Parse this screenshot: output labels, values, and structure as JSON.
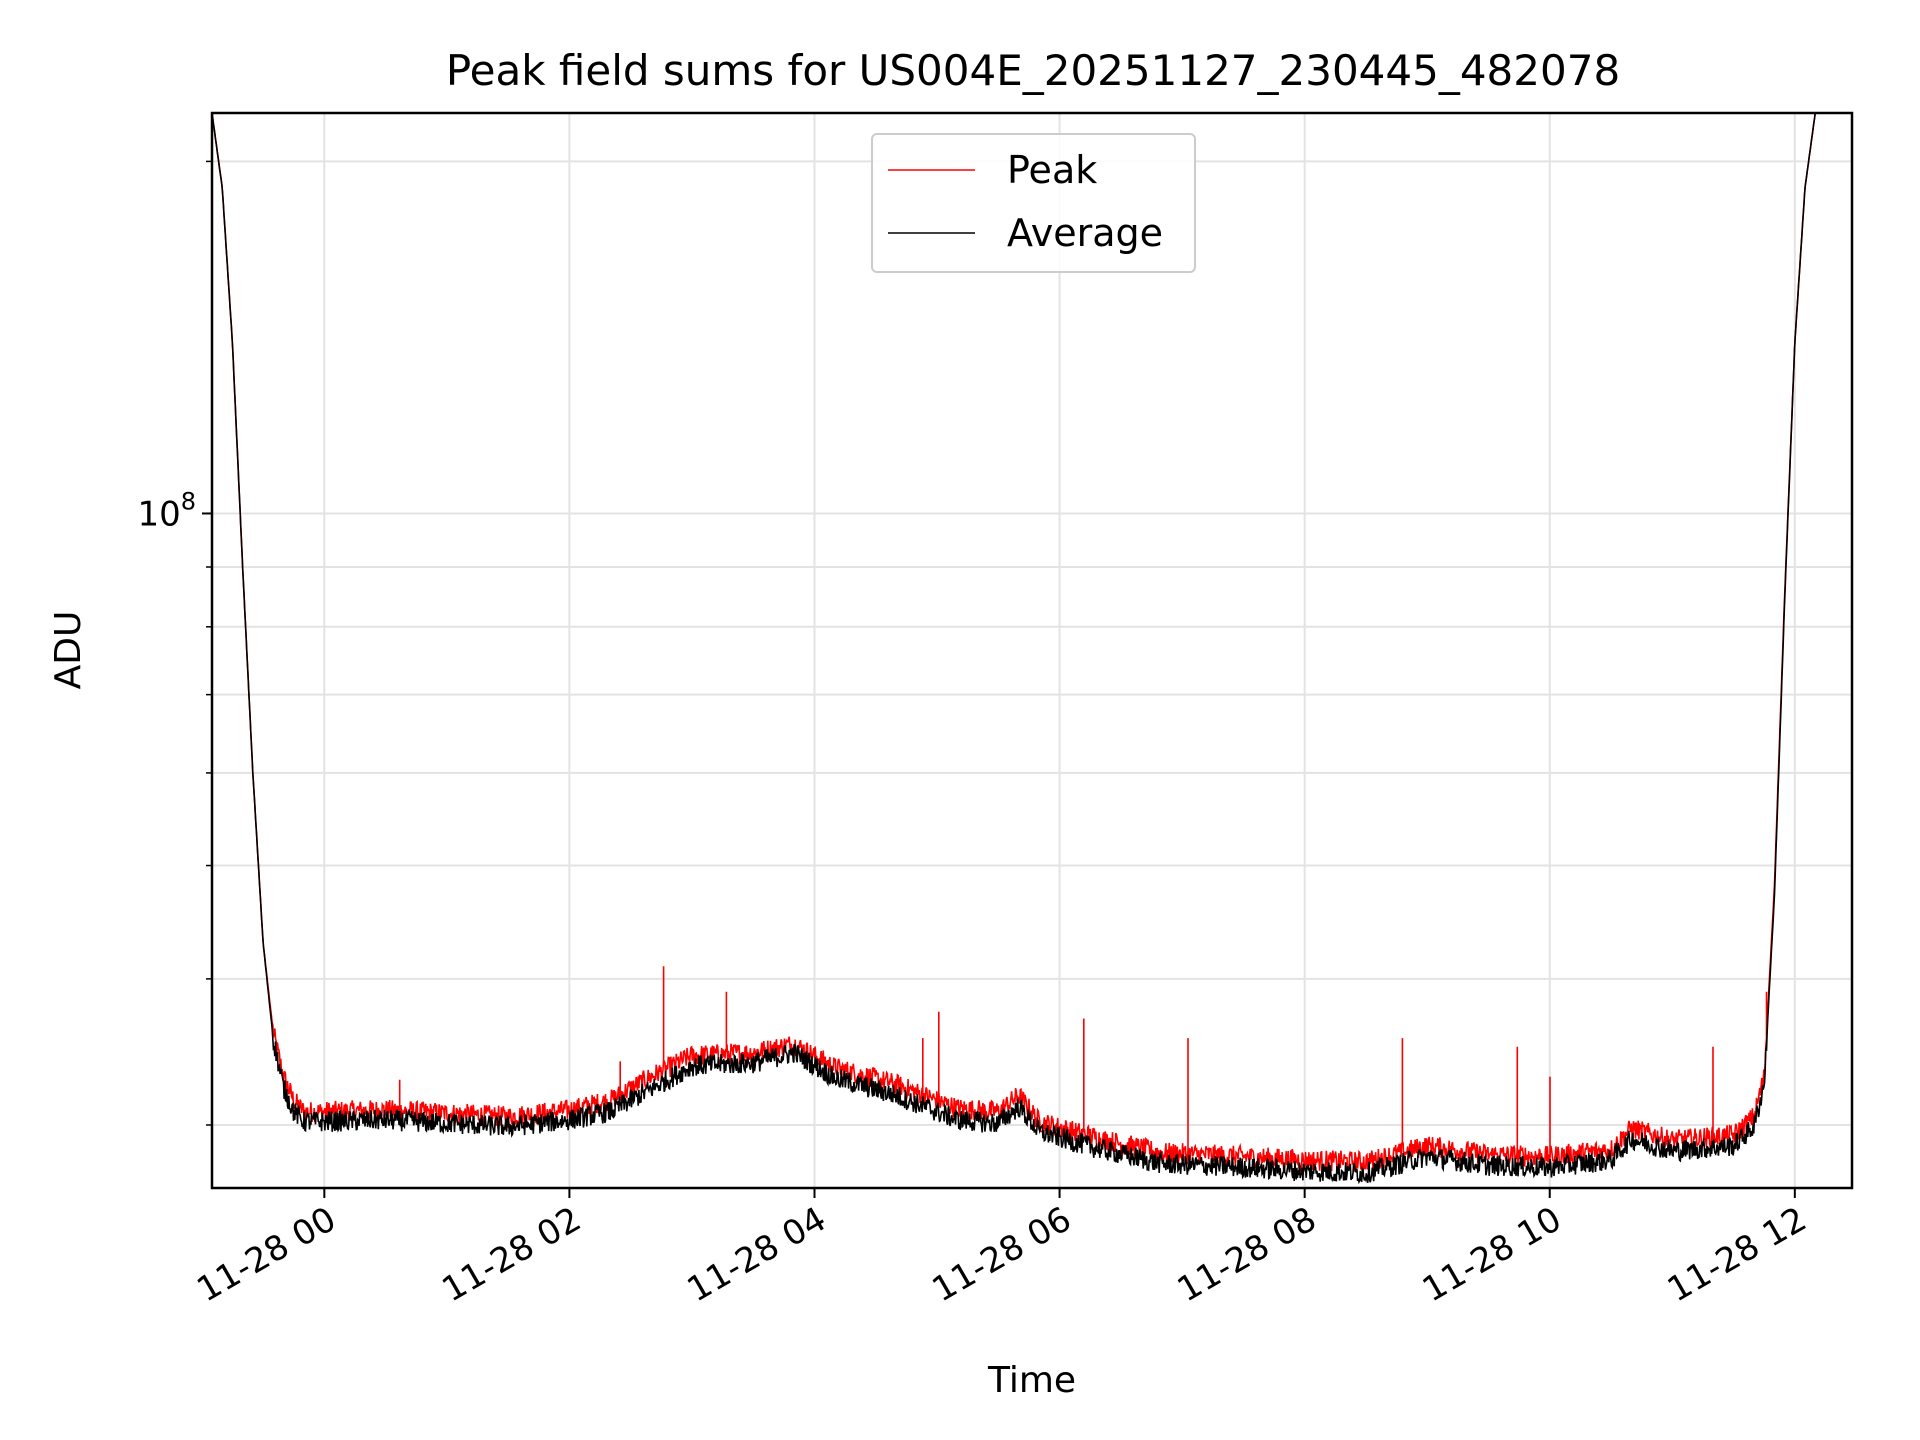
{
  "chart_data": {
    "type": "line",
    "title": "Peak field sums for US004E_20251127_230445_482078",
    "xlabel": "Time",
    "ylabel": "ADU",
    "yscale": "log",
    "xlim": [
      "2025-11-27 23:05",
      "2025-11-28 12:28"
    ],
    "ylim": [
      26500000,
      220000000
    ],
    "grid": true,
    "legend": "upper-center",
    "x_ticks": [
      "11-28 00",
      "11-28 02",
      "11-28 04",
      "11-28 06",
      "11-28 08",
      "11-28 10",
      "11-28 12"
    ],
    "y_ticks": [
      {
        "value": 100000000,
        "base": "10",
        "exp": "8"
      }
    ],
    "series": [
      {
        "name": "Peak",
        "color": "#ff0000",
        "points": [
          [
            "2025-11-27 23:05",
            220000000
          ],
          [
            "2025-11-27 23:10",
            190000000
          ],
          [
            "2025-11-27 23:15",
            140000000
          ],
          [
            "2025-11-27 23:20",
            90000000
          ],
          [
            "2025-11-27 23:25",
            60000000
          ],
          [
            "2025-11-27 23:30",
            43000000
          ],
          [
            "2025-11-27 23:35",
            36000000
          ],
          [
            "2025-11-27 23:40",
            33000000
          ],
          [
            "2025-11-27 23:45",
            31500000
          ],
          [
            "2025-11-27 23:50",
            30800000
          ],
          [
            "2025-11-28 00:00",
            30800000
          ],
          [
            "2025-11-28 00:30",
            30900000
          ],
          [
            "2025-11-28 01:00",
            30700000
          ],
          [
            "2025-11-28 01:30",
            30500000
          ],
          [
            "2025-11-28 02:00",
            30900000
          ],
          [
            "2025-11-28 02:20",
            31500000
          ],
          [
            "2025-11-28 02:40",
            33000000
          ],
          [
            "2025-11-28 03:00",
            34400000
          ],
          [
            "2025-11-28 03:30",
            34600000
          ],
          [
            "2025-11-28 03:50",
            35200000
          ],
          [
            "2025-11-28 04:10",
            33600000
          ],
          [
            "2025-11-28 04:40",
            32500000
          ],
          [
            "2025-11-28 05:10",
            31000000
          ],
          [
            "2025-11-28 05:30",
            30800000
          ],
          [
            "2025-11-28 05:40",
            31800000
          ],
          [
            "2025-11-28 05:50",
            30200000
          ],
          [
            "2025-11-28 06:20",
            29200000
          ],
          [
            "2025-11-28 06:50",
            28400000
          ],
          [
            "2025-11-28 07:30",
            28200000
          ],
          [
            "2025-11-28 08:00",
            28000000
          ],
          [
            "2025-11-28 08:30",
            27900000
          ],
          [
            "2025-11-28 09:00",
            28800000
          ],
          [
            "2025-11-28 09:30",
            28300000
          ],
          [
            "2025-11-28 10:00",
            28200000
          ],
          [
            "2025-11-28 10:30",
            28600000
          ],
          [
            "2025-11-28 10:40",
            29800000
          ],
          [
            "2025-11-28 11:00",
            29100000
          ],
          [
            "2025-11-28 11:30",
            29400000
          ],
          [
            "2025-11-28 11:40",
            30500000
          ],
          [
            "2025-11-28 11:45",
            33000000
          ],
          [
            "2025-11-28 11:50",
            48000000
          ],
          [
            "2025-11-28 11:55",
            85000000
          ],
          [
            "2025-11-28 12:00",
            140000000
          ],
          [
            "2025-11-28 12:05",
            190000000
          ],
          [
            "2025-11-28 12:10",
            220000000
          ]
        ],
        "spikes": [
          [
            "2025-11-28 00:37",
            32800000
          ],
          [
            "2025-11-28 02:25",
            34000000
          ],
          [
            "2025-11-28 02:46",
            41000000
          ],
          [
            "2025-11-28 03:17",
            39000000
          ],
          [
            "2025-11-28 04:53",
            35600000
          ],
          [
            "2025-11-28 05:01",
            37500000
          ],
          [
            "2025-11-28 06:12",
            37000000
          ],
          [
            "2025-11-28 07:03",
            35600000
          ],
          [
            "2025-11-28 08:48",
            35600000
          ],
          [
            "2025-11-28 09:44",
            35000000
          ],
          [
            "2025-11-28 10:00",
            33000000
          ],
          [
            "2025-11-28 11:20",
            35000000
          ],
          [
            "2025-11-28 11:46",
            39000000
          ]
        ]
      },
      {
        "name": "Average",
        "color": "#000000",
        "points": [
          [
            "2025-11-27 23:05",
            220000000
          ],
          [
            "2025-11-27 23:10",
            190000000
          ],
          [
            "2025-11-27 23:15",
            140000000
          ],
          [
            "2025-11-27 23:20",
            90000000
          ],
          [
            "2025-11-27 23:25",
            60000000
          ],
          [
            "2025-11-27 23:30",
            43000000
          ],
          [
            "2025-11-27 23:35",
            35500000
          ],
          [
            "2025-11-27 23:40",
            32300000
          ],
          [
            "2025-11-27 23:45",
            30800000
          ],
          [
            "2025-11-27 23:50",
            30200000
          ],
          [
            "2025-11-28 00:00",
            30200000
          ],
          [
            "2025-11-28 00:30",
            30300000
          ],
          [
            "2025-11-28 01:00",
            30100000
          ],
          [
            "2025-11-28 01:30",
            29900000
          ],
          [
            "2025-11-28 02:00",
            30300000
          ],
          [
            "2025-11-28 02:20",
            30800000
          ],
          [
            "2025-11-28 02:40",
            32200000
          ],
          [
            "2025-11-28 03:00",
            33700000
          ],
          [
            "2025-11-28 03:30",
            33900000
          ],
          [
            "2025-11-28 03:50",
            34600000
          ],
          [
            "2025-11-28 04:10",
            32900000
          ],
          [
            "2025-11-28 04:40",
            31800000
          ],
          [
            "2025-11-28 05:10",
            30300000
          ],
          [
            "2025-11-28 05:30",
            30100000
          ],
          [
            "2025-11-28 05:40",
            31100000
          ],
          [
            "2025-11-28 05:50",
            29600000
          ],
          [
            "2025-11-28 06:20",
            28600000
          ],
          [
            "2025-11-28 06:50",
            27800000
          ],
          [
            "2025-11-28 07:30",
            27600000
          ],
          [
            "2025-11-28 08:00",
            27400000
          ],
          [
            "2025-11-28 08:30",
            27300000
          ],
          [
            "2025-11-28 09:00",
            28200000
          ],
          [
            "2025-11-28 09:30",
            27700000
          ],
          [
            "2025-11-28 10:00",
            27600000
          ],
          [
            "2025-11-28 10:30",
            28000000
          ],
          [
            "2025-11-28 10:40",
            29200000
          ],
          [
            "2025-11-28 11:00",
            28500000
          ],
          [
            "2025-11-28 11:30",
            28800000
          ],
          [
            "2025-11-28 11:40",
            29900000
          ],
          [
            "2025-11-28 11:45",
            32500000
          ],
          [
            "2025-11-28 11:50",
            47000000
          ],
          [
            "2025-11-28 11:55",
            84000000
          ],
          [
            "2025-11-28 12:00",
            140000000
          ],
          [
            "2025-11-28 12:05",
            190000000
          ],
          [
            "2025-11-28 12:10",
            220000000
          ]
        ]
      }
    ]
  }
}
